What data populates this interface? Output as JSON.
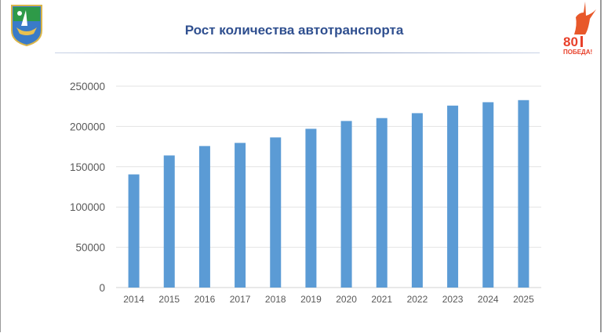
{
  "slide": {
    "title": "Рост количества автотранспорта",
    "logo_right_text": "80 ПОБЕДА!",
    "logo_left": "city-coat-of-arms"
  },
  "chart_data": {
    "type": "bar",
    "title": "",
    "xlabel": "",
    "ylabel": "",
    "categories": [
      "2014",
      "2015",
      "2016",
      "2017",
      "2018",
      "2019",
      "2020",
      "2021",
      "2022",
      "2023",
      "2024",
      "2025"
    ],
    "values": [
      140500,
      164000,
      175700,
      179600,
      186400,
      197100,
      206800,
      210400,
      216500,
      225900,
      230100,
      232700
    ],
    "ylim": [
      0,
      250000
    ],
    "yticks": [
      "0",
      "50000",
      "100000",
      "150000",
      "200000",
      "250000"
    ],
    "grid": true,
    "legend": "none",
    "bar_color": "#5b9bd5"
  }
}
